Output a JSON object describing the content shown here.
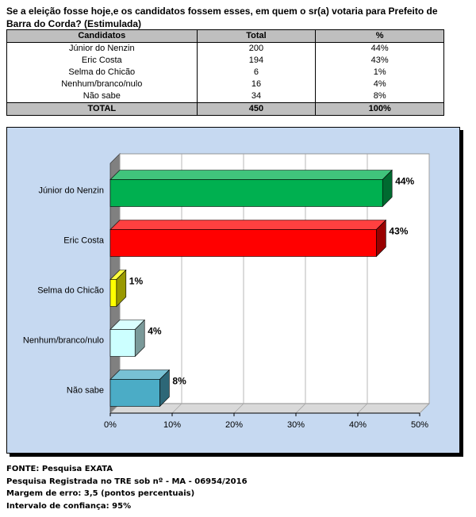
{
  "question": "Se a eleição fosse hoje,e os candidatos fossem esses, em quem o sr(a) votaria para Prefeito de Barra do Corda? (Estimulada)",
  "table": {
    "headers": [
      "Candidatos",
      "Total",
      "%"
    ],
    "rows": [
      {
        "name": "Júnior do Nenzin",
        "total": "200",
        "pct": "44%"
      },
      {
        "name": "Eric Costa",
        "total": "194",
        "pct": "43%"
      },
      {
        "name": "Selma do Chicão",
        "total": "6",
        "pct": "1%"
      },
      {
        "name": "Nenhum/branco/nulo",
        "total": "16",
        "pct": "4%"
      },
      {
        "name": "Não sabe",
        "total": "34",
        "pct": "8%"
      }
    ],
    "total": {
      "name": "TOTAL",
      "total": "450",
      "pct": "100%"
    }
  },
  "chart_data": {
    "type": "bar",
    "orientation": "horizontal",
    "three_d": true,
    "categories": [
      "Júnior do Nenzin",
      "Eric Costa",
      "Selma do Chicão",
      "Nenhum/branco/nulo",
      "Não sabe"
    ],
    "values": [
      44,
      43,
      1,
      4,
      8
    ],
    "data_labels": [
      "44%",
      "43%",
      "1%",
      "4%",
      "8%"
    ],
    "xlim": [
      0,
      50
    ],
    "xticks": [
      "0%",
      "10%",
      "20%",
      "30%",
      "40%",
      "50%"
    ],
    "grid": true,
    "legend": "none",
    "colors": [
      "#00b050",
      "#ff0000",
      "#ffff00",
      "#ccffff",
      "#4bacc6"
    ],
    "background": "#c6d9f1"
  },
  "footer": [
    "FONTE: Pesquisa EXATA",
    "Pesquisa Registrada no TRE sob nº - MA - 06954/2016",
    "Margem de erro: 3,5 (pontos percentuais)",
    "Intervalo de confiança: 95%"
  ]
}
